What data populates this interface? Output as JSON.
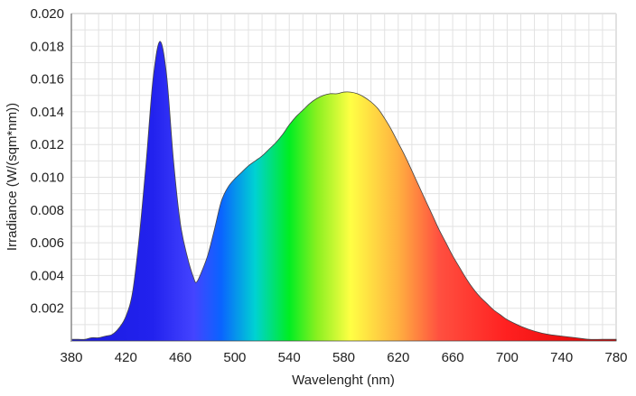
{
  "chart_data": {
    "type": "area",
    "title": "",
    "xlabel": "Wavelenght (nm)",
    "ylabel": "Irradiance (W/(sqm*nm))",
    "xlim": [
      380,
      780
    ],
    "ylim": [
      0,
      0.02
    ],
    "x_ticks": [
      380,
      420,
      460,
      500,
      540,
      580,
      620,
      660,
      700,
      740,
      780
    ],
    "y_ticks": [
      "0.002",
      "0.004",
      "0.006",
      "0.008",
      "0.010",
      "0.012",
      "0.014",
      "0.016",
      "0.018",
      "0.020"
    ],
    "grid": true,
    "grid_x_step": 10,
    "grid_y_step": 0.001,
    "legend": "none",
    "fill": "visible-spectrum gradient",
    "series": [
      {
        "name": "Irradiance",
        "x": [
          380,
          385,
          390,
          395,
          400,
          405,
          410,
          415,
          420,
          425,
          430,
          435,
          440,
          445,
          450,
          455,
          460,
          465,
          470,
          472,
          475,
          480,
          485,
          490,
          495,
          500,
          505,
          510,
          515,
          520,
          525,
          530,
          535,
          540,
          545,
          550,
          555,
          560,
          565,
          570,
          575,
          580,
          585,
          590,
          595,
          600,
          605,
          610,
          615,
          620,
          625,
          630,
          635,
          640,
          645,
          650,
          655,
          660,
          665,
          670,
          675,
          680,
          685,
          690,
          695,
          700,
          710,
          720,
          730,
          740,
          750,
          760,
          770,
          780
        ],
        "values": [
          0.0001,
          0.0001,
          0.0001,
          0.0002,
          0.0002,
          0.0003,
          0.0004,
          0.0008,
          0.0015,
          0.003,
          0.0065,
          0.011,
          0.016,
          0.0183,
          0.0162,
          0.011,
          0.0072,
          0.0052,
          0.0038,
          0.0036,
          0.0041,
          0.0052,
          0.0068,
          0.0085,
          0.0094,
          0.0099,
          0.0103,
          0.0107,
          0.011,
          0.0113,
          0.0117,
          0.0121,
          0.0126,
          0.0132,
          0.0137,
          0.0141,
          0.0145,
          0.0148,
          0.015,
          0.0151,
          0.0151,
          0.0152,
          0.0152,
          0.0151,
          0.0149,
          0.0146,
          0.0142,
          0.0136,
          0.0129,
          0.0121,
          0.0113,
          0.0104,
          0.0095,
          0.0086,
          0.0077,
          0.0068,
          0.006,
          0.0052,
          0.0045,
          0.0038,
          0.0032,
          0.0027,
          0.0023,
          0.0019,
          0.0016,
          0.0013,
          0.0009,
          0.0006,
          0.0004,
          0.0003,
          0.0002,
          0.0001,
          0.0001,
          0.0001
        ]
      }
    ],
    "annotations": []
  },
  "colors": {
    "grid": "#e2e2e2",
    "axis": "#888888",
    "outline": "#444444",
    "spectrum_stops": [
      {
        "nm": 380,
        "color": "#1a1adf"
      },
      {
        "nm": 440,
        "color": "#2222ee"
      },
      {
        "nm": 470,
        "color": "#4444ff"
      },
      {
        "nm": 490,
        "color": "#0a64ff"
      },
      {
        "nm": 515,
        "color": "#00d2d2"
      },
      {
        "nm": 540,
        "color": "#00ee22"
      },
      {
        "nm": 560,
        "color": "#88f020"
      },
      {
        "nm": 585,
        "color": "#ffff44"
      },
      {
        "nm": 620,
        "color": "#ffb040"
      },
      {
        "nm": 650,
        "color": "#ff5040"
      },
      {
        "nm": 700,
        "color": "#ff2020"
      },
      {
        "nm": 780,
        "color": "#dd0000"
      }
    ]
  }
}
